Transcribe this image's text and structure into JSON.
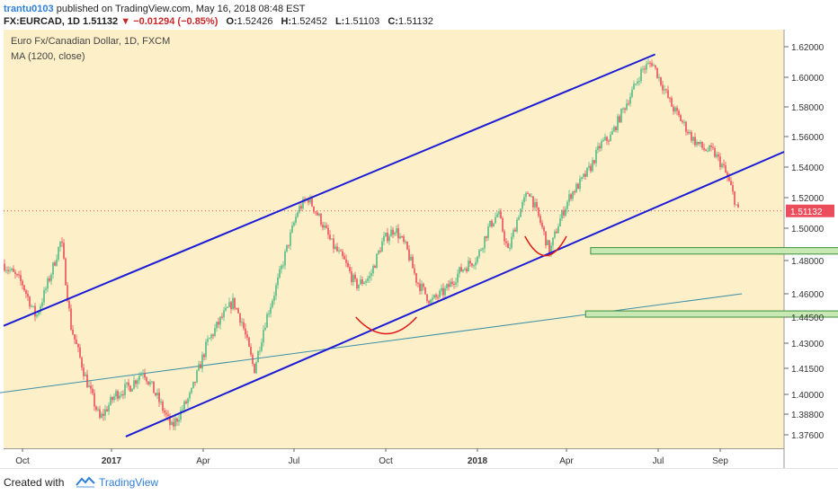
{
  "header": {
    "user": "trantu0103",
    "published_text": "published on TradingView.com, May 16, 2018 08:48 EST",
    "symbol": "FX:EURCAD, 1D",
    "price": "1.51132",
    "arrow": "▼",
    "change": "−0.01294 (−0.85%)",
    "ohlc": [
      {
        "k": "O:",
        "v": "1.52426"
      },
      {
        "k": "H:",
        "v": "1.52452"
      },
      {
        "k": "L:",
        "v": "1.51103"
      },
      {
        "k": "C:",
        "v": "1.51132"
      }
    ]
  },
  "footer": {
    "created_with": "Created with",
    "brand": "TradingView"
  },
  "colors": {
    "plot_bg": "#fdf0c8",
    "up": "#53b987",
    "down": "#eb4d5c",
    "channel": "#1c1cd6",
    "ma": "#3c8fa8",
    "arc": "#e01818",
    "zone_fill": "#c8e8b4",
    "zone_stroke": "#3c8f3c",
    "last_badge": "#eb4d5c"
  },
  "chart_data": {
    "type": "candlestick",
    "title": "Euro Fx/Canadian Dollar, 1D, FXCM",
    "indicator": "MA (1200, close)",
    "last_price_label": "1.51132",
    "y_ticks": [
      "1.62000",
      "1.60000",
      "1.58000",
      "1.56000",
      "1.54000",
      "1.52000",
      "1.50000",
      "1.48000",
      "1.46000",
      "1.44500",
      "1.43000",
      "1.41500",
      "1.40000",
      "1.38800",
      "1.37600"
    ],
    "x_ticks": [
      {
        "label": "Oct",
        "bold": false
      },
      {
        "label": "2017",
        "bold": true
      },
      {
        "label": "Apr",
        "bold": false
      },
      {
        "label": "Jul",
        "bold": false
      },
      {
        "label": "Oct",
        "bold": false
      },
      {
        "label": "2018",
        "bold": true
      },
      {
        "label": "Apr",
        "bold": false
      },
      {
        "label": "Jul",
        "bold": false
      },
      {
        "label": "Sep",
        "bold": false
      }
    ],
    "price_path": [
      [
        "2016-09-15",
        1.478
      ],
      [
        "2016-10-01",
        1.466
      ],
      [
        "2016-10-15",
        1.445
      ],
      [
        "2016-11-01",
        1.475
      ],
      [
        "2016-11-10",
        1.493
      ],
      [
        "2016-11-20",
        1.44
      ],
      [
        "2016-12-05",
        1.41
      ],
      [
        "2016-12-20",
        1.385
      ],
      [
        "2017-01-05",
        1.4
      ],
      [
        "2017-01-20",
        1.405
      ],
      [
        "2017-02-01",
        1.414
      ],
      [
        "2017-02-15",
        1.398
      ],
      [
        "2017-03-01",
        1.38
      ],
      [
        "2017-03-20",
        1.4
      ],
      [
        "2017-04-05",
        1.43
      ],
      [
        "2017-04-20",
        1.445
      ],
      [
        "2017-05-01",
        1.455
      ],
      [
        "2017-05-10",
        1.442
      ],
      [
        "2017-05-22",
        1.414
      ],
      [
        "2017-06-01",
        1.44
      ],
      [
        "2017-06-15",
        1.468
      ],
      [
        "2017-06-25",
        1.49
      ],
      [
        "2017-07-05",
        1.512
      ],
      [
        "2017-07-15",
        1.52
      ],
      [
        "2017-07-28",
        1.505
      ],
      [
        "2017-08-08",
        1.49
      ],
      [
        "2017-08-20",
        1.48
      ],
      [
        "2017-09-01",
        1.465
      ],
      [
        "2017-09-15",
        1.47
      ],
      [
        "2017-09-28",
        1.492
      ],
      [
        "2017-10-10",
        1.5
      ],
      [
        "2017-10-22",
        1.487
      ],
      [
        "2017-11-01",
        1.468
      ],
      [
        "2017-11-15",
        1.455
      ],
      [
        "2017-11-30",
        1.462
      ],
      [
        "2017-12-15",
        1.474
      ],
      [
        "2018-01-01",
        1.482
      ],
      [
        "2018-01-12",
        1.5
      ],
      [
        "2018-01-22",
        1.51
      ],
      [
        "2018-02-01",
        1.485
      ],
      [
        "2018-02-12",
        1.51
      ],
      [
        "2018-02-22",
        1.525
      ],
      [
        "2018-03-05",
        1.505
      ],
      [
        "2018-03-15",
        1.485
      ],
      [
        "2018-03-25",
        1.505
      ],
      [
        "2018-04-05",
        1.522
      ],
      [
        "2018-04-15",
        1.53
      ],
      [
        "2018-04-25",
        1.54
      ],
      [
        "2018-05-05",
        1.555
      ],
      [
        "2018-05-15",
        1.56
      ],
      [
        "2018-05-25",
        1.575
      ],
      [
        "2018-06-05",
        1.59
      ],
      [
        "2018-06-15",
        1.605
      ],
      [
        "2018-06-25",
        1.61
      ],
      [
        "2018-07-05",
        1.595
      ],
      [
        "2018-07-15",
        1.58
      ],
      [
        "2018-07-25",
        1.57
      ],
      [
        "2018-08-05",
        1.558
      ],
      [
        "2018-08-15",
        1.552
      ],
      [
        "2018-08-25",
        1.55
      ],
      [
        "2018-09-05",
        1.54
      ],
      [
        "2018-09-15",
        1.527
      ],
      [
        "2018-09-25",
        1.511
      ]
    ],
    "ma_line": [
      [
        "2016-09-01",
        1.4
      ],
      [
        "2018-09-30",
        1.46
      ]
    ],
    "channel_upper": [
      [
        "2016-09-15",
        1.44
      ],
      [
        "2018-06-28",
        1.615
      ]
    ],
    "channel_lower": [
      [
        "2017-01-15",
        1.375
      ],
      [
        "2018-11-25",
        1.55
      ]
    ],
    "support_zones": [
      {
        "from": "2018-04-25",
        "to": "2019-05-01",
        "high": 1.488,
        "low": 1.484
      },
      {
        "from": "2018-04-20",
        "to": "2019-07-01",
        "high": 1.449,
        "low": 1.445
      }
    ],
    "arcs": [
      {
        "from": "2017-09-01",
        "to": "2017-11-01",
        "top": 1.445,
        "bottom": 1.437
      },
      {
        "from": "2018-02-18",
        "to": "2018-04-01",
        "top": 1.495,
        "bottom": 1.485
      }
    ]
  }
}
